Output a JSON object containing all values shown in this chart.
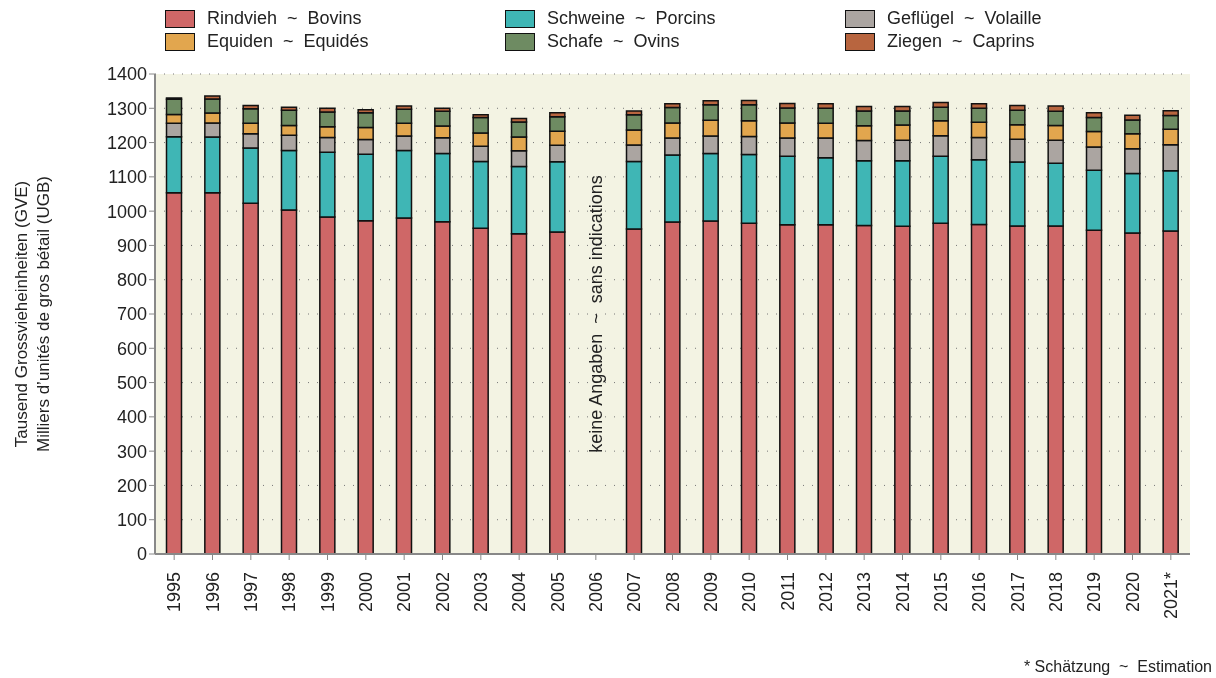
{
  "chart_data": {
    "type": "bar",
    "stacked": true,
    "ylabel": "Tausend Grossvieheinheiten (GVE)\nMilliers d’unités de gros bétail (UGB)",
    "categories": [
      "1995",
      "1996",
      "1997",
      "1998",
      "1999",
      "2000",
      "2001",
      "2002",
      "2003",
      "2004",
      "2005",
      "2006",
      "2007",
      "2008",
      "2009",
      "2010",
      "2011",
      "2012",
      "2013",
      "2014",
      "2015",
      "2016",
      "2017",
      "2018",
      "2019",
      "2020",
      "2021*"
    ],
    "series": [
      {
        "name": "Rindvieh  ~  Bovins",
        "color": "#cf6767",
        "values": [
          1054,
          1054,
          1023,
          1003,
          983,
          972,
          980,
          969,
          950,
          934,
          939,
          null,
          948,
          968,
          971,
          965,
          960,
          960,
          958,
          956,
          965,
          961,
          957,
          957,
          944,
          936,
          942
        ]
      },
      {
        "name": "Schweine  ~  Porcins",
        "color": "#3fb6b5",
        "values": [
          163,
          162,
          161,
          174,
          189,
          194,
          197,
          199,
          195,
          196,
          205,
          null,
          197,
          196,
          197,
          200,
          200,
          196,
          189,
          191,
          195,
          189,
          186,
          183,
          175,
          174,
          176
        ]
      },
      {
        "name": "Geflügel  ~  Volaille",
        "color": "#aba5a1",
        "values": [
          39,
          41,
          42,
          44,
          43,
          43,
          42,
          46,
          44,
          46,
          48,
          null,
          48,
          49,
          51,
          53,
          53,
          57,
          59,
          60,
          60,
          65,
          67,
          67,
          68,
          72,
          76
        ]
      },
      {
        "name": "Equiden  ~  Equidés",
        "color": "#e2a64e",
        "values": [
          26,
          29,
          30,
          29,
          31,
          35,
          37,
          34,
          39,
          40,
          41,
          null,
          44,
          44,
          46,
          46,
          44,
          43,
          43,
          44,
          44,
          44,
          42,
          43,
          45,
          44,
          45
        ]
      },
      {
        "name": "Schafe  ~  Ovins",
        "color": "#6e8b62",
        "values": [
          44,
          41,
          43,
          44,
          43,
          43,
          41,
          43,
          45,
          44,
          42,
          null,
          44,
          45,
          45,
          46,
          44,
          44,
          43,
          41,
          39,
          41,
          42,
          41,
          41,
          40,
          40
        ]
      },
      {
        "name": "Ziegen  ~  Caprins",
        "color": "#b8653f",
        "values": [
          4,
          9,
          9,
          9,
          11,
          9,
          10,
          9,
          8,
          10,
          12,
          null,
          11,
          11,
          12,
          13,
          13,
          13,
          13,
          13,
          14,
          13,
          14,
          16,
          14,
          14,
          14
        ]
      }
    ],
    "ylim": [
      0,
      1400
    ],
    "yticks": [
      0,
      100,
      200,
      300,
      400,
      500,
      600,
      700,
      800,
      900,
      1000,
      1100,
      1200,
      1300,
      1400
    ],
    "grid": "y",
    "legend": "top",
    "annotations": [
      "keine Angaben  ~  sans indications",
      "* Schätzung  ~  Estimation"
    ]
  }
}
